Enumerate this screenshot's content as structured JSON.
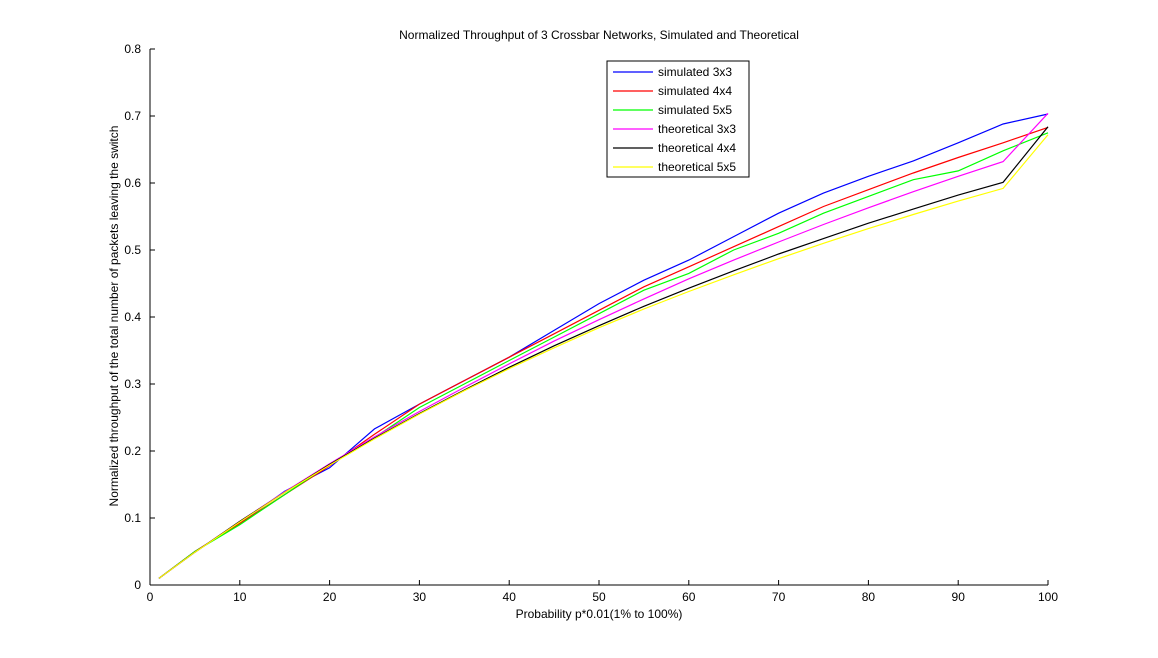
{
  "chart_data": {
    "type": "line",
    "title": "Normalized Throughput of 3 Crossbar Networks, Simulated and Theoretical",
    "xlabel": "Probability p*0.01(1% to 100%)",
    "ylabel": "Normalized throughput of the total number of packets leaving the switch",
    "xlim": [
      0,
      100
    ],
    "ylim": [
      0,
      0.8
    ],
    "xticks": [
      0,
      10,
      20,
      30,
      40,
      50,
      60,
      70,
      80,
      90,
      100
    ],
    "yticks": [
      0,
      0.1,
      0.2,
      0.3,
      0.4,
      0.5,
      0.6,
      0.7,
      0.8
    ],
    "ytick_labels": [
      "0",
      "0.1",
      "0.2",
      "0.3",
      "0.4",
      "0.5",
      "0.6",
      "0.7",
      "0.8"
    ],
    "grid": false,
    "legend_position": "top-center",
    "x": [
      1,
      5,
      10,
      15,
      20,
      25,
      30,
      35,
      40,
      45,
      50,
      55,
      60,
      65,
      70,
      75,
      80,
      85,
      90,
      95,
      100
    ],
    "series": [
      {
        "name": "simulated 3x3",
        "color": "#0000ff",
        "values": [
          0.01,
          0.05,
          0.092,
          0.14,
          0.175,
          0.233,
          0.27,
          0.305,
          0.34,
          0.38,
          0.42,
          0.455,
          0.485,
          0.52,
          0.555,
          0.585,
          0.61,
          0.633,
          0.66,
          0.688,
          0.703
        ]
      },
      {
        "name": "simulated 4x4",
        "color": "#ff0000",
        "values": [
          0.01,
          0.05,
          0.092,
          0.135,
          0.178,
          0.225,
          0.27,
          0.305,
          0.34,
          0.375,
          0.41,
          0.445,
          0.475,
          0.505,
          0.535,
          0.565,
          0.59,
          0.615,
          0.638,
          0.66,
          0.683
        ]
      },
      {
        "name": "simulated 5x5",
        "color": "#00ff00",
        "values": [
          0.01,
          0.05,
          0.09,
          0.135,
          0.18,
          0.22,
          0.265,
          0.3,
          0.335,
          0.37,
          0.405,
          0.44,
          0.465,
          0.5,
          0.525,
          0.555,
          0.58,
          0.605,
          0.618,
          0.648,
          0.675
        ]
      },
      {
        "name": "theoretical 3x3",
        "color": "#ff00ff",
        "values": [
          0.01,
          0.049,
          0.095,
          0.139,
          0.181,
          0.221,
          0.259,
          0.295,
          0.33,
          0.364,
          0.396,
          0.427,
          0.457,
          0.485,
          0.512,
          0.538,
          0.563,
          0.587,
          0.61,
          0.632,
          0.704
        ]
      },
      {
        "name": "theoretical 4x4",
        "color": "#000000",
        "values": [
          0.01,
          0.049,
          0.095,
          0.138,
          0.18,
          0.219,
          0.256,
          0.291,
          0.325,
          0.357,
          0.387,
          0.416,
          0.443,
          0.469,
          0.494,
          0.517,
          0.54,
          0.561,
          0.582,
          0.601,
          0.684
        ]
      },
      {
        "name": "theoretical 5x5",
        "color": "#ffff00",
        "values": [
          0.01,
          0.049,
          0.094,
          0.138,
          0.179,
          0.218,
          0.255,
          0.29,
          0.323,
          0.354,
          0.384,
          0.412,
          0.438,
          0.463,
          0.487,
          0.51,
          0.532,
          0.553,
          0.573,
          0.592,
          0.672
        ]
      }
    ]
  }
}
